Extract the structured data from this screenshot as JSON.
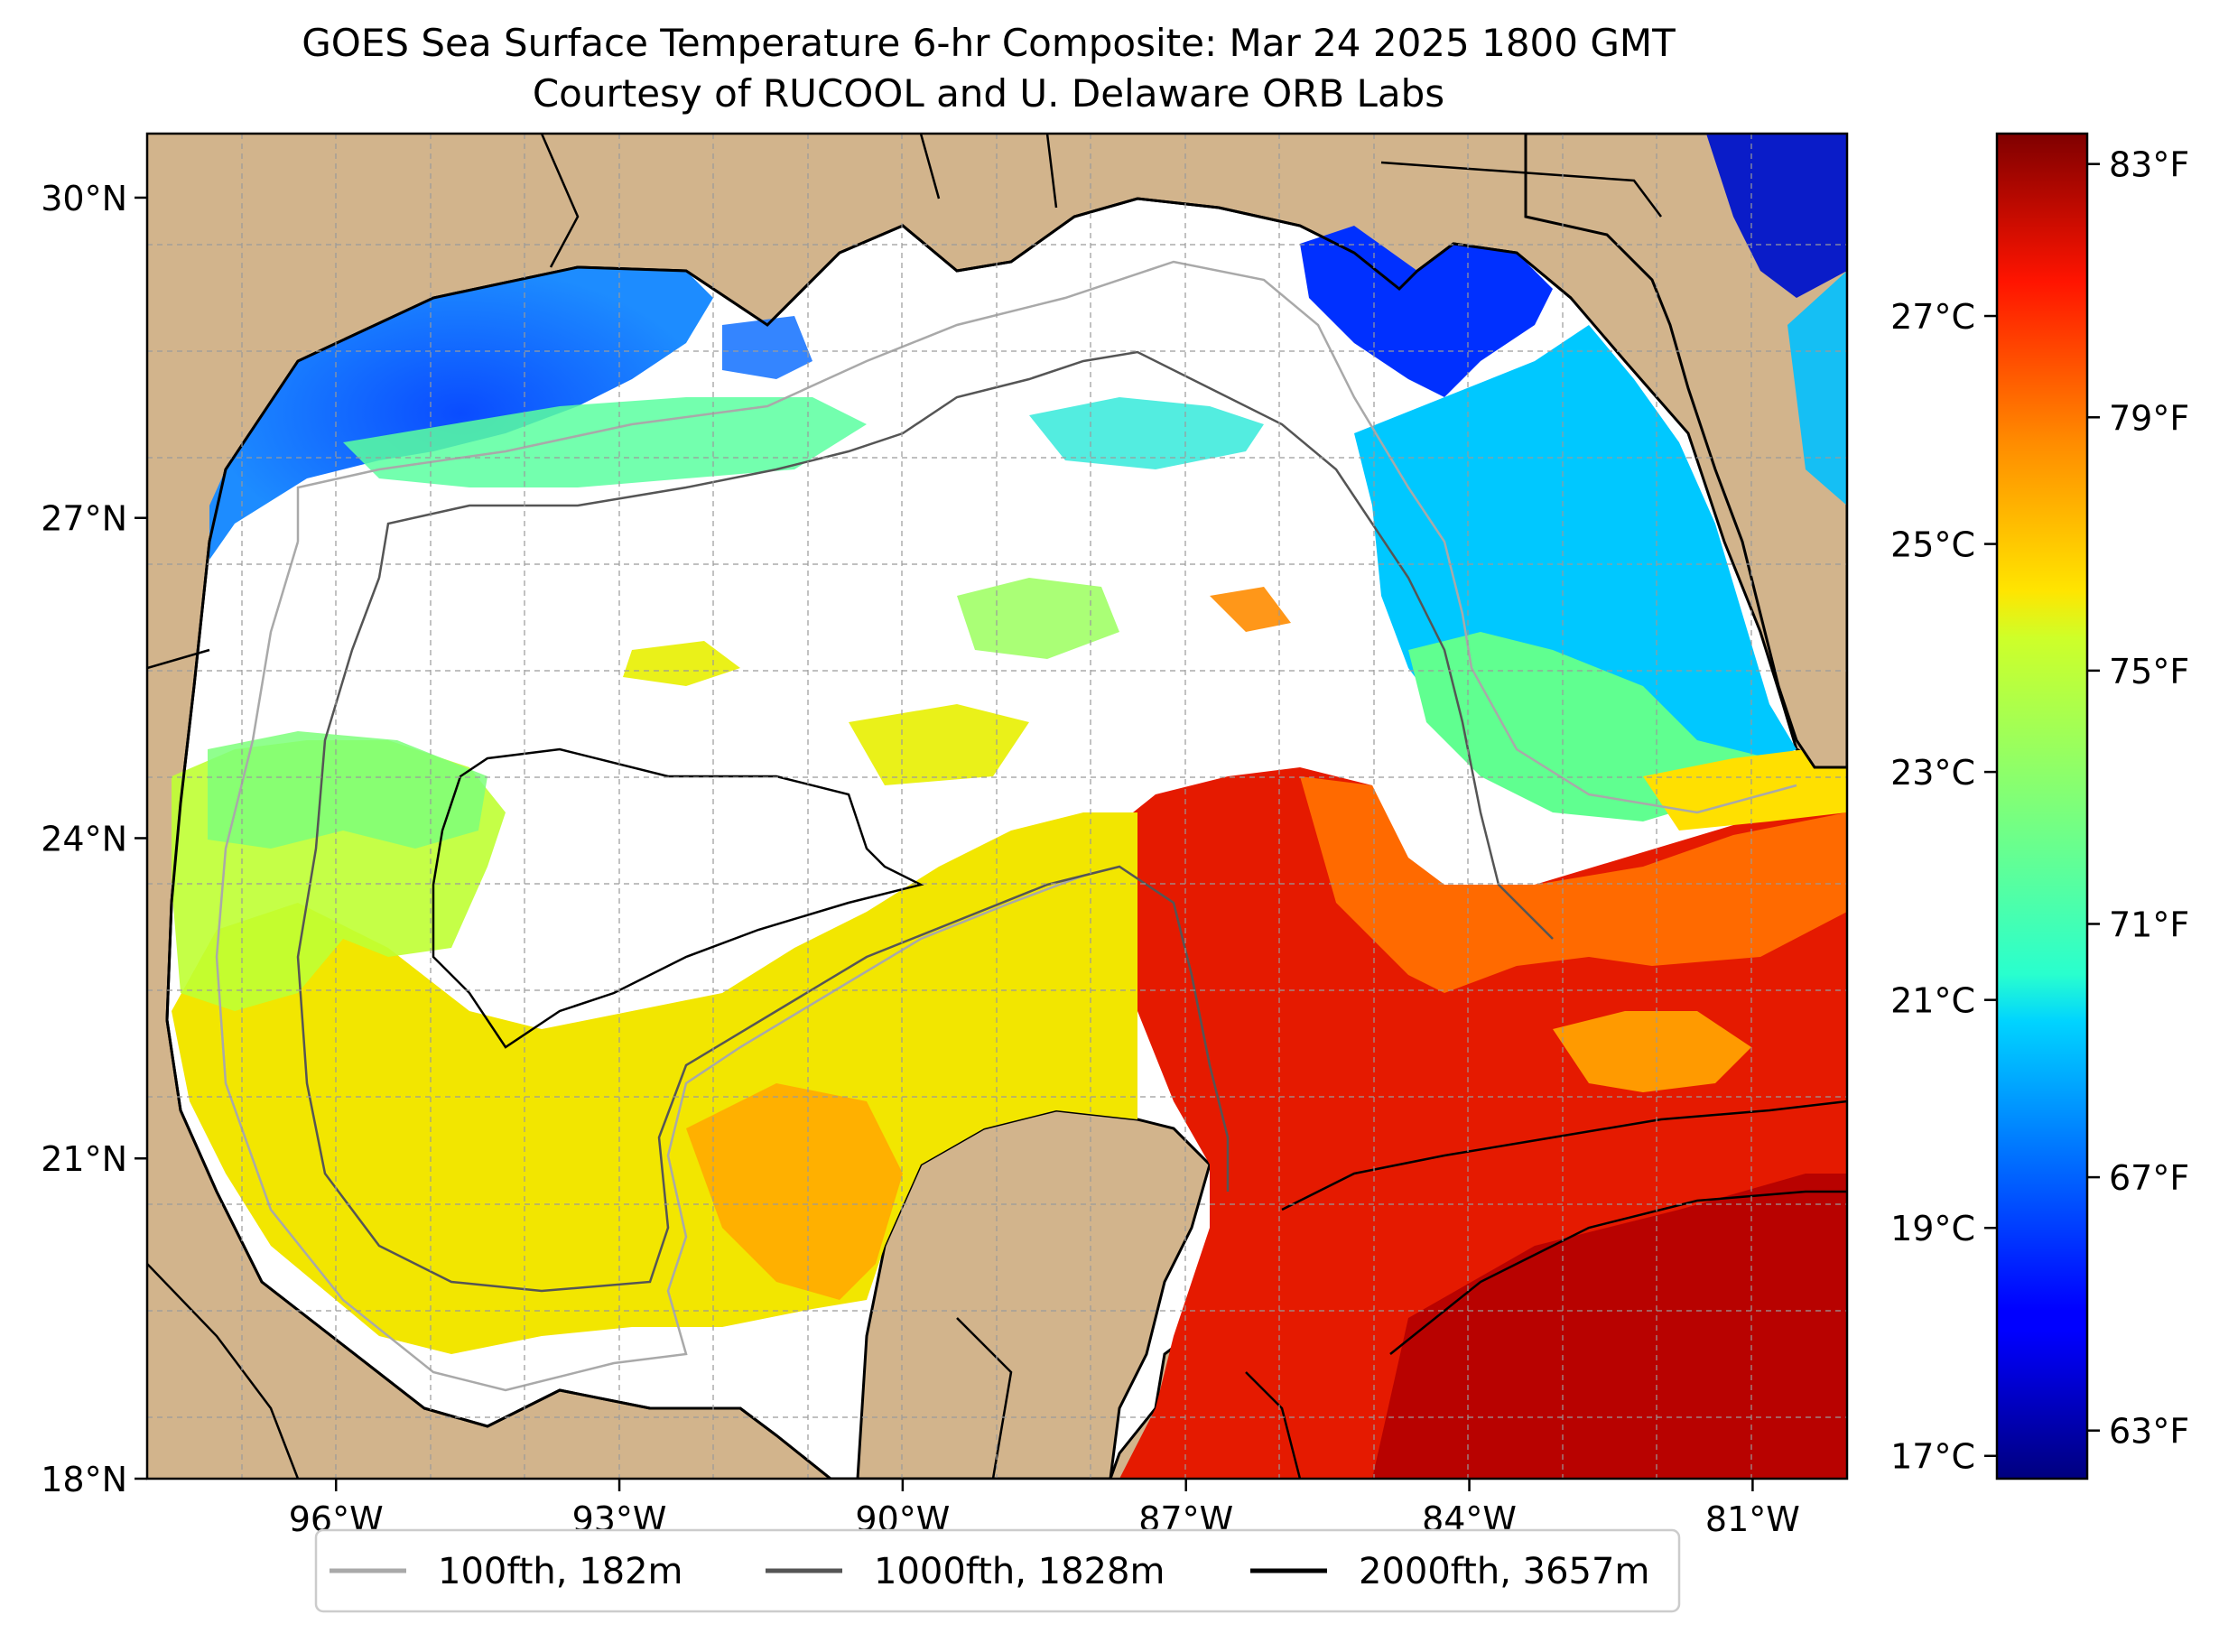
{
  "title_line1": "GOES Sea Surface Temperature 6-hr Composite: Mar 24 2025 1800 GMT",
  "title_line2": "Courtesy of RUCOOL and U. Delaware ORB Labs",
  "map": {
    "projection": "equirectangular",
    "lon_range": [
      -98.0,
      -80.0
    ],
    "lat_range": [
      18.0,
      30.6
    ],
    "land_color": "#d2b48c",
    "cloud_color": "#ffffff",
    "gridlines": true,
    "lon_ticks": [
      {
        "value": -96,
        "label": "96°W"
      },
      {
        "value": -93,
        "label": "93°W"
      },
      {
        "value": -90,
        "label": "90°W"
      },
      {
        "value": -87,
        "label": "87°W"
      },
      {
        "value": -84,
        "label": "84°W"
      },
      {
        "value": -81,
        "label": "81°W"
      }
    ],
    "lat_ticks": [
      {
        "value": 30,
        "label": "30°N"
      },
      {
        "value": 27,
        "label": "27°N"
      },
      {
        "value": 24,
        "label": "24°N"
      },
      {
        "value": 21,
        "label": "21°N"
      },
      {
        "value": 18,
        "label": "18°N"
      }
    ]
  },
  "colorbar": {
    "colormap": "jet",
    "vmin_c": 16.8,
    "vmax_c": 28.6,
    "celsius_ticks": [
      {
        "value": 17,
        "label": "17°C"
      },
      {
        "value": 19,
        "label": "19°C"
      },
      {
        "value": 21,
        "label": "21°C"
      },
      {
        "value": 23,
        "label": "23°C"
      },
      {
        "value": 25,
        "label": "25°C"
      },
      {
        "value": 27,
        "label": "27°C"
      }
    ],
    "fahrenheit_ticks": [
      {
        "value": 63,
        "label": "63°F"
      },
      {
        "value": 67,
        "label": "67°F"
      },
      {
        "value": 71,
        "label": "71°F"
      },
      {
        "value": 75,
        "label": "75°F"
      },
      {
        "value": 79,
        "label": "79°F"
      },
      {
        "value": 83,
        "label": "83°F"
      }
    ]
  },
  "legend": [
    {
      "label": "100fth, 182m",
      "color": "#a9a9a9"
    },
    {
      "label": "1000fth, 1828m",
      "color": "#555555"
    },
    {
      "label": "2000fth, 3657m",
      "color": "#000000"
    }
  ]
}
